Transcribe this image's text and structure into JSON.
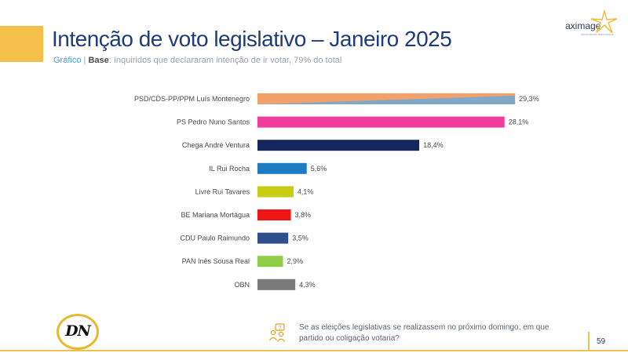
{
  "header": {
    "title": "Intenção de voto legislativo – Janeiro 2025",
    "subtitle_kind": "Gráfico",
    "subtitle_sep": "|",
    "subtitle_base_label": "Base",
    "subtitle_base_text": ": Inquiridos que declararam intenção de ir votar, 79% do total"
  },
  "brand": {
    "logo_text": "aximage",
    "logo_tagline": "consultores associados",
    "newspaper_logo": "DN"
  },
  "colors": {
    "title": "#1f3b78",
    "accent": "#f5c04a"
  },
  "chart_data": {
    "type": "bar",
    "orientation": "horizontal",
    "categories": [
      "PSD/CDS-PP/PPM Luís Montenegro",
      "PS Pedro Nuno Santos",
      "Chega André Ventura",
      "IL Rui Rocha",
      "Livre Rui Tavares",
      "BE Mariana Mortágua",
      "CDU Paulo Raimundo",
      "PAN Inês Sousa Real",
      "OBN"
    ],
    "values": [
      29.3,
      28.1,
      18.4,
      5.6,
      4.1,
      3.8,
      3.5,
      2.9,
      4.3
    ],
    "value_labels": [
      "29,3%",
      "28,1%",
      "18,4%",
      "5,6%",
      "4,1%",
      "3,8%",
      "3,5%",
      "2,9%",
      "4,3%"
    ],
    "colors": [
      "#f4a06a",
      "#f03d9c",
      "#14265c",
      "#1b7cc4",
      "#c8cc12",
      "#f01616",
      "#2e4f8c",
      "#8fcc48",
      "#7a7a7a"
    ],
    "first_bar_secondary_color": "#7fa8c9",
    "xlim": [
      0,
      30
    ],
    "grid": false,
    "legend": "none"
  },
  "footer": {
    "question": "Se as eleições legislativas se realizassem no próximo domingo, em que partido ou coligação votaria?",
    "page_number": "59",
    "question_icon": "people-question-icon"
  }
}
